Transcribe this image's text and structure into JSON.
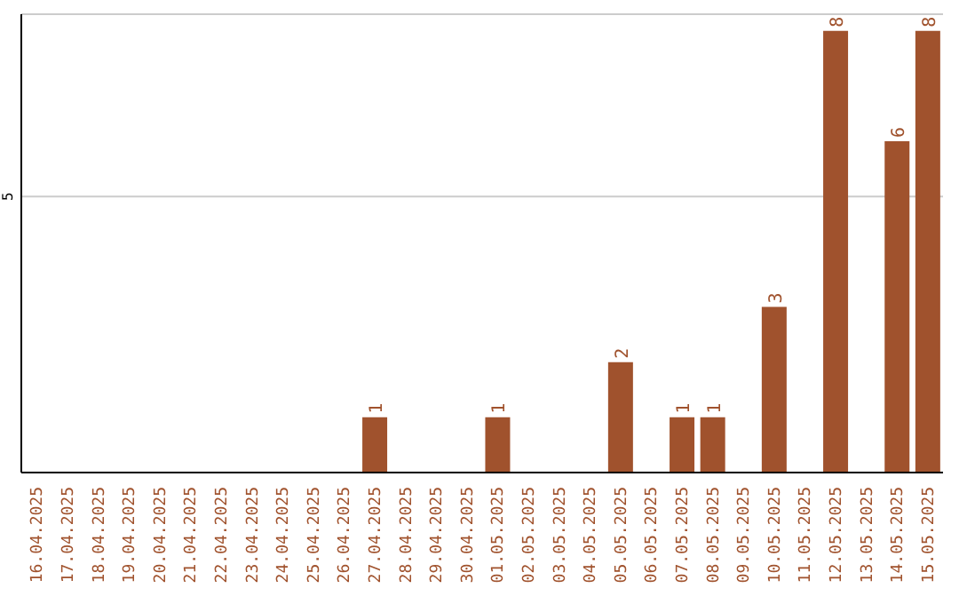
{
  "chart_data": {
    "type": "bar",
    "categories": [
      "16.04.2025",
      "17.04.2025",
      "18.04.2025",
      "19.04.2025",
      "20.04.2025",
      "21.04.2025",
      "22.04.2025",
      "23.04.2025",
      "24.04.2025",
      "25.04.2025",
      "26.04.2025",
      "27.04.2025",
      "28.04.2025",
      "29.04.2025",
      "30.04.2025",
      "01.05.2025",
      "02.05.2025",
      "03.05.2025",
      "04.05.2025",
      "05.05.2025",
      "06.05.2025",
      "07.05.2025",
      "08.05.2025",
      "09.05.2025",
      "10.05.2025",
      "11.05.2025",
      "12.05.2025",
      "13.05.2025",
      "14.05.2025",
      "15.05.2025"
    ],
    "values": [
      0,
      0,
      0,
      0,
      0,
      0,
      0,
      0,
      0,
      0,
      0,
      1,
      0,
      0,
      0,
      1,
      0,
      0,
      0,
      2,
      0,
      1,
      1,
      0,
      3,
      0,
      8,
      0,
      6,
      8
    ],
    "value_labels": [
      null,
      null,
      null,
      null,
      null,
      null,
      null,
      null,
      null,
      null,
      null,
      "1",
      null,
      null,
      null,
      "1",
      null,
      null,
      null,
      "2",
      null,
      "1",
      "1",
      null,
      "3",
      null,
      "8",
      null,
      "6",
      "8"
    ],
    "color": "#a0522d",
    "ylim": [
      0,
      8.3
    ],
    "yticks": [
      5
    ],
    "grid": "y"
  }
}
